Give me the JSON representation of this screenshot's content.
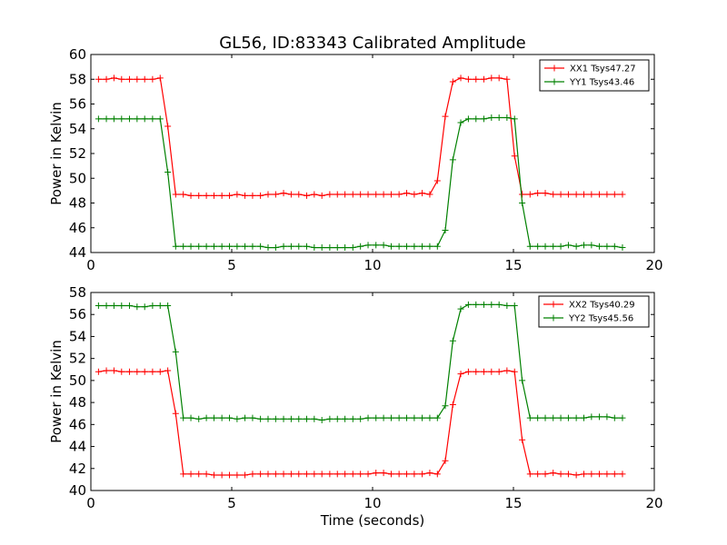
{
  "figure": {
    "title": "GL56, ID:83343 Calibrated Amplitude"
  },
  "chart_data": [
    {
      "type": "line",
      "title": "GL56, ID:83343 Calibrated Amplitude",
      "xlabel": "",
      "ylabel": "Power in Kelvin",
      "xlim": [
        0,
        20
      ],
      "ylim": [
        44,
        60
      ],
      "xticks": [
        "0",
        "5",
        "10",
        "15",
        "20"
      ],
      "yticks": [
        "44",
        "46",
        "48",
        "50",
        "52",
        "54",
        "56",
        "58",
        "60"
      ],
      "grid": false,
      "legend_position": "top-right",
      "x": [
        0.27,
        0.55,
        0.82,
        1.09,
        1.37,
        1.64,
        1.91,
        2.19,
        2.46,
        2.73,
        3.01,
        3.28,
        3.55,
        3.83,
        4.1,
        4.37,
        4.65,
        4.92,
        5.19,
        5.47,
        5.74,
        6.02,
        6.29,
        6.56,
        6.84,
        7.11,
        7.38,
        7.66,
        7.93,
        8.2,
        8.48,
        8.75,
        9.02,
        9.3,
        9.57,
        9.84,
        10.12,
        10.39,
        10.66,
        10.94,
        11.21,
        11.48,
        11.76,
        12.03,
        12.3,
        12.58,
        12.85,
        13.13,
        13.4,
        13.67,
        13.95,
        14.22,
        14.49,
        14.77,
        15.04,
        15.31,
        15.59,
        15.86,
        16.13,
        16.41,
        16.68,
        16.95,
        17.23,
        17.5,
        17.77,
        18.05,
        18.32,
        18.59,
        18.87
      ],
      "series": [
        {
          "name": "XX1 Tsys47.27",
          "color": "#ff0000",
          "values": [
            58.0,
            58.0,
            58.1,
            58.0,
            58.0,
            58.0,
            58.0,
            58.0,
            58.1,
            54.2,
            48.7,
            48.7,
            48.6,
            48.6,
            48.6,
            48.6,
            48.6,
            48.6,
            48.7,
            48.6,
            48.6,
            48.6,
            48.7,
            48.7,
            48.8,
            48.7,
            48.7,
            48.6,
            48.7,
            48.6,
            48.7,
            48.7,
            48.7,
            48.7,
            48.7,
            48.7,
            48.7,
            48.7,
            48.7,
            48.7,
            48.8,
            48.7,
            48.8,
            48.7,
            49.8,
            55.0,
            57.8,
            58.1,
            58.0,
            58.0,
            58.0,
            58.1,
            58.1,
            58.0,
            51.8,
            48.7,
            48.7,
            48.8,
            48.8,
            48.7,
            48.7,
            48.7,
            48.7,
            48.7,
            48.7,
            48.7,
            48.7,
            48.7,
            48.7
          ]
        },
        {
          "name": "YY1 Tsys43.46",
          "color": "#008000",
          "values": [
            54.8,
            54.8,
            54.8,
            54.8,
            54.8,
            54.8,
            54.8,
            54.8,
            54.8,
            50.5,
            44.5,
            44.5,
            44.5,
            44.5,
            44.5,
            44.5,
            44.5,
            44.5,
            44.5,
            44.5,
            44.5,
            44.5,
            44.4,
            44.4,
            44.5,
            44.5,
            44.5,
            44.5,
            44.4,
            44.4,
            44.4,
            44.4,
            44.4,
            44.4,
            44.5,
            44.6,
            44.6,
            44.6,
            44.5,
            44.5,
            44.5,
            44.5,
            44.5,
            44.5,
            44.5,
            45.8,
            51.5,
            54.5,
            54.8,
            54.8,
            54.8,
            54.9,
            54.9,
            54.9,
            54.8,
            48.0,
            44.5,
            44.5,
            44.5,
            44.5,
            44.5,
            44.6,
            44.5,
            44.6,
            44.6,
            44.5,
            44.5,
            44.5,
            44.4
          ]
        }
      ]
    },
    {
      "type": "line",
      "title": "",
      "xlabel": "Time (seconds)",
      "ylabel": "Power in Kelvin",
      "xlim": [
        0,
        20
      ],
      "ylim": [
        40,
        58
      ],
      "xticks": [
        "0",
        "5",
        "10",
        "15",
        "20"
      ],
      "yticks": [
        "40",
        "42",
        "44",
        "46",
        "48",
        "50",
        "52",
        "54",
        "56",
        "58"
      ],
      "grid": false,
      "legend_position": "top-right",
      "x": [
        0.27,
        0.55,
        0.82,
        1.09,
        1.37,
        1.64,
        1.91,
        2.19,
        2.46,
        2.73,
        3.01,
        3.28,
        3.55,
        3.83,
        4.1,
        4.37,
        4.65,
        4.92,
        5.19,
        5.47,
        5.74,
        6.02,
        6.29,
        6.56,
        6.84,
        7.11,
        7.38,
        7.66,
        7.93,
        8.2,
        8.48,
        8.75,
        9.02,
        9.3,
        9.57,
        9.84,
        10.12,
        10.39,
        10.66,
        10.94,
        11.21,
        11.48,
        11.76,
        12.03,
        12.3,
        12.58,
        12.85,
        13.13,
        13.4,
        13.67,
        13.95,
        14.22,
        14.49,
        14.77,
        15.04,
        15.31,
        15.59,
        15.86,
        16.13,
        16.41,
        16.68,
        16.95,
        17.23,
        17.5,
        17.77,
        18.05,
        18.32,
        18.59,
        18.87
      ],
      "series": [
        {
          "name": "XX2 Tsys40.29",
          "color": "#ff0000",
          "values": [
            50.8,
            50.9,
            50.9,
            50.8,
            50.8,
            50.8,
            50.8,
            50.8,
            50.8,
            50.9,
            47.0,
            41.5,
            41.5,
            41.5,
            41.5,
            41.4,
            41.4,
            41.4,
            41.4,
            41.4,
            41.5,
            41.5,
            41.5,
            41.5,
            41.5,
            41.5,
            41.5,
            41.5,
            41.5,
            41.5,
            41.5,
            41.5,
            41.5,
            41.5,
            41.5,
            41.5,
            41.6,
            41.6,
            41.5,
            41.5,
            41.5,
            41.5,
            41.5,
            41.6,
            41.5,
            42.7,
            47.8,
            50.6,
            50.8,
            50.8,
            50.8,
            50.8,
            50.8,
            50.9,
            50.8,
            44.6,
            41.5,
            41.5,
            41.5,
            41.6,
            41.5,
            41.5,
            41.4,
            41.5,
            41.5,
            41.5,
            41.5,
            41.5,
            41.5
          ]
        },
        {
          "name": "YY2 Tsys45.56",
          "color": "#008000",
          "values": [
            56.8,
            56.8,
            56.8,
            56.8,
            56.8,
            56.7,
            56.7,
            56.8,
            56.8,
            56.8,
            52.6,
            46.6,
            46.6,
            46.5,
            46.6,
            46.6,
            46.6,
            46.6,
            46.5,
            46.6,
            46.6,
            46.5,
            46.5,
            46.5,
            46.5,
            46.5,
            46.5,
            46.5,
            46.5,
            46.4,
            46.5,
            46.5,
            46.5,
            46.5,
            46.5,
            46.6,
            46.6,
            46.6,
            46.6,
            46.6,
            46.6,
            46.6,
            46.6,
            46.6,
            46.6,
            47.7,
            53.6,
            56.5,
            56.9,
            56.9,
            56.9,
            56.9,
            56.9,
            56.8,
            56.8,
            50.0,
            46.6,
            46.6,
            46.6,
            46.6,
            46.6,
            46.6,
            46.6,
            46.6,
            46.7,
            46.7,
            46.7,
            46.6,
            46.6
          ]
        }
      ]
    }
  ]
}
